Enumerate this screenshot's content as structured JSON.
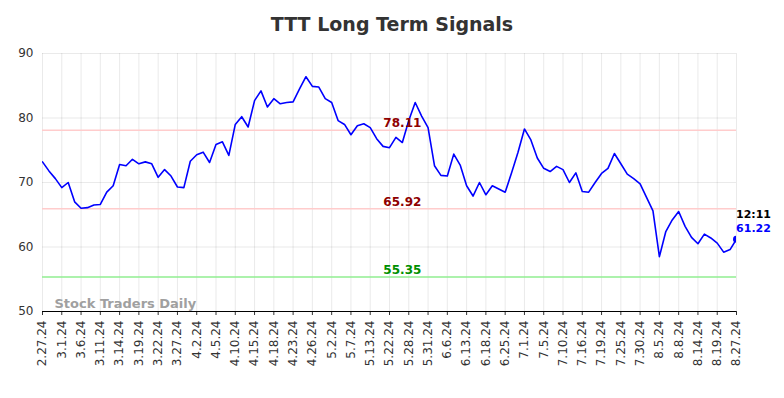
{
  "chart_data": {
    "type": "line",
    "title": "TTT Long Term Signals",
    "categories": [
      "2.27.24",
      null,
      null,
      "3.1.24",
      null,
      null,
      "3.6.24",
      null,
      null,
      "3.11.24",
      null,
      null,
      "3.14.24",
      null,
      null,
      "3.19.24",
      null,
      null,
      "3.22.24",
      null,
      null,
      "3.27.24",
      null,
      null,
      "4.2.24",
      null,
      null,
      "4.5.24",
      null,
      null,
      "4.10.24",
      null,
      null,
      "4.15.24",
      null,
      null,
      "4.18.24",
      null,
      null,
      "4.23.24",
      null,
      null,
      "4.26.24",
      null,
      null,
      "5.2.24",
      null,
      null,
      "5.7.24",
      null,
      null,
      "5.13.24",
      null,
      null,
      "5.22.24",
      null,
      null,
      "5.28.24",
      null,
      null,
      "5.31.24",
      null,
      null,
      "6.6.24",
      null,
      null,
      "6.13.24",
      null,
      null,
      "6.18.24",
      null,
      null,
      "6.25.24",
      null,
      null,
      "7.1.24",
      null,
      null,
      "7.5.24",
      null,
      null,
      "7.10.24",
      null,
      null,
      "7.16.24",
      null,
      null,
      "7.19.24",
      null,
      null,
      "7.25.24",
      null,
      null,
      "7.30.24",
      null,
      null,
      "8.5.24",
      null,
      null,
      "8.8.24",
      null,
      null,
      "8.14.24",
      null,
      null,
      "8.19.24",
      null,
      null,
      "8.27.24"
    ],
    "values": [
      73.2,
      71.8,
      70.6,
      69.2,
      70.0,
      67.0,
      66.0,
      66.1,
      66.5,
      66.6,
      68.5,
      69.5,
      72.8,
      72.6,
      73.6,
      72.9,
      73.2,
      72.9,
      70.8,
      72.0,
      71.0,
      69.3,
      69.2,
      73.3,
      74.3,
      74.7,
      73.1,
      75.9,
      76.3,
      74.2,
      79.0,
      80.2,
      78.6,
      82.7,
      84.2,
      81.7,
      83.0,
      82.2,
      82.4,
      82.5,
      84.5,
      86.4,
      84.9,
      84.8,
      83.0,
      82.4,
      79.6,
      79.0,
      77.4,
      78.8,
      79.1,
      78.5,
      76.8,
      75.6,
      75.4,
      77.0,
      76.2,
      79.6,
      82.4,
      80.3,
      78.5,
      72.6,
      71.1,
      71.0,
      74.4,
      72.7,
      69.5,
      67.9,
      70.0,
      68.1,
      69.5,
      69.0,
      68.5,
      71.5,
      74.7,
      78.3,
      76.6,
      73.8,
      72.2,
      71.7,
      72.5,
      72.0,
      70.0,
      71.5,
      68.6,
      68.5,
      70.0,
      71.4,
      72.2,
      74.5,
      72.9,
      71.3,
      70.6,
      69.8,
      67.7,
      65.6,
      58.5,
      62.4,
      64.2,
      65.5,
      63.2,
      61.5,
      60.5,
      62.0,
      61.4,
      60.6,
      59.2,
      59.6,
      61.22
    ],
    "color": "#0000ff",
    "ylim": [
      50,
      90
    ],
    "yticks": [
      50,
      60,
      70,
      80,
      90
    ],
    "grid": true,
    "reference_lines": [
      {
        "value": 78.11,
        "color": "#ffcccc"
      },
      {
        "value": 65.92,
        "color": "#ffcccc"
      },
      {
        "value": 55.35,
        "color": "#90ee90"
      }
    ],
    "last_point_label": "12:11",
    "watermark": "Stock Traders Daily"
  }
}
